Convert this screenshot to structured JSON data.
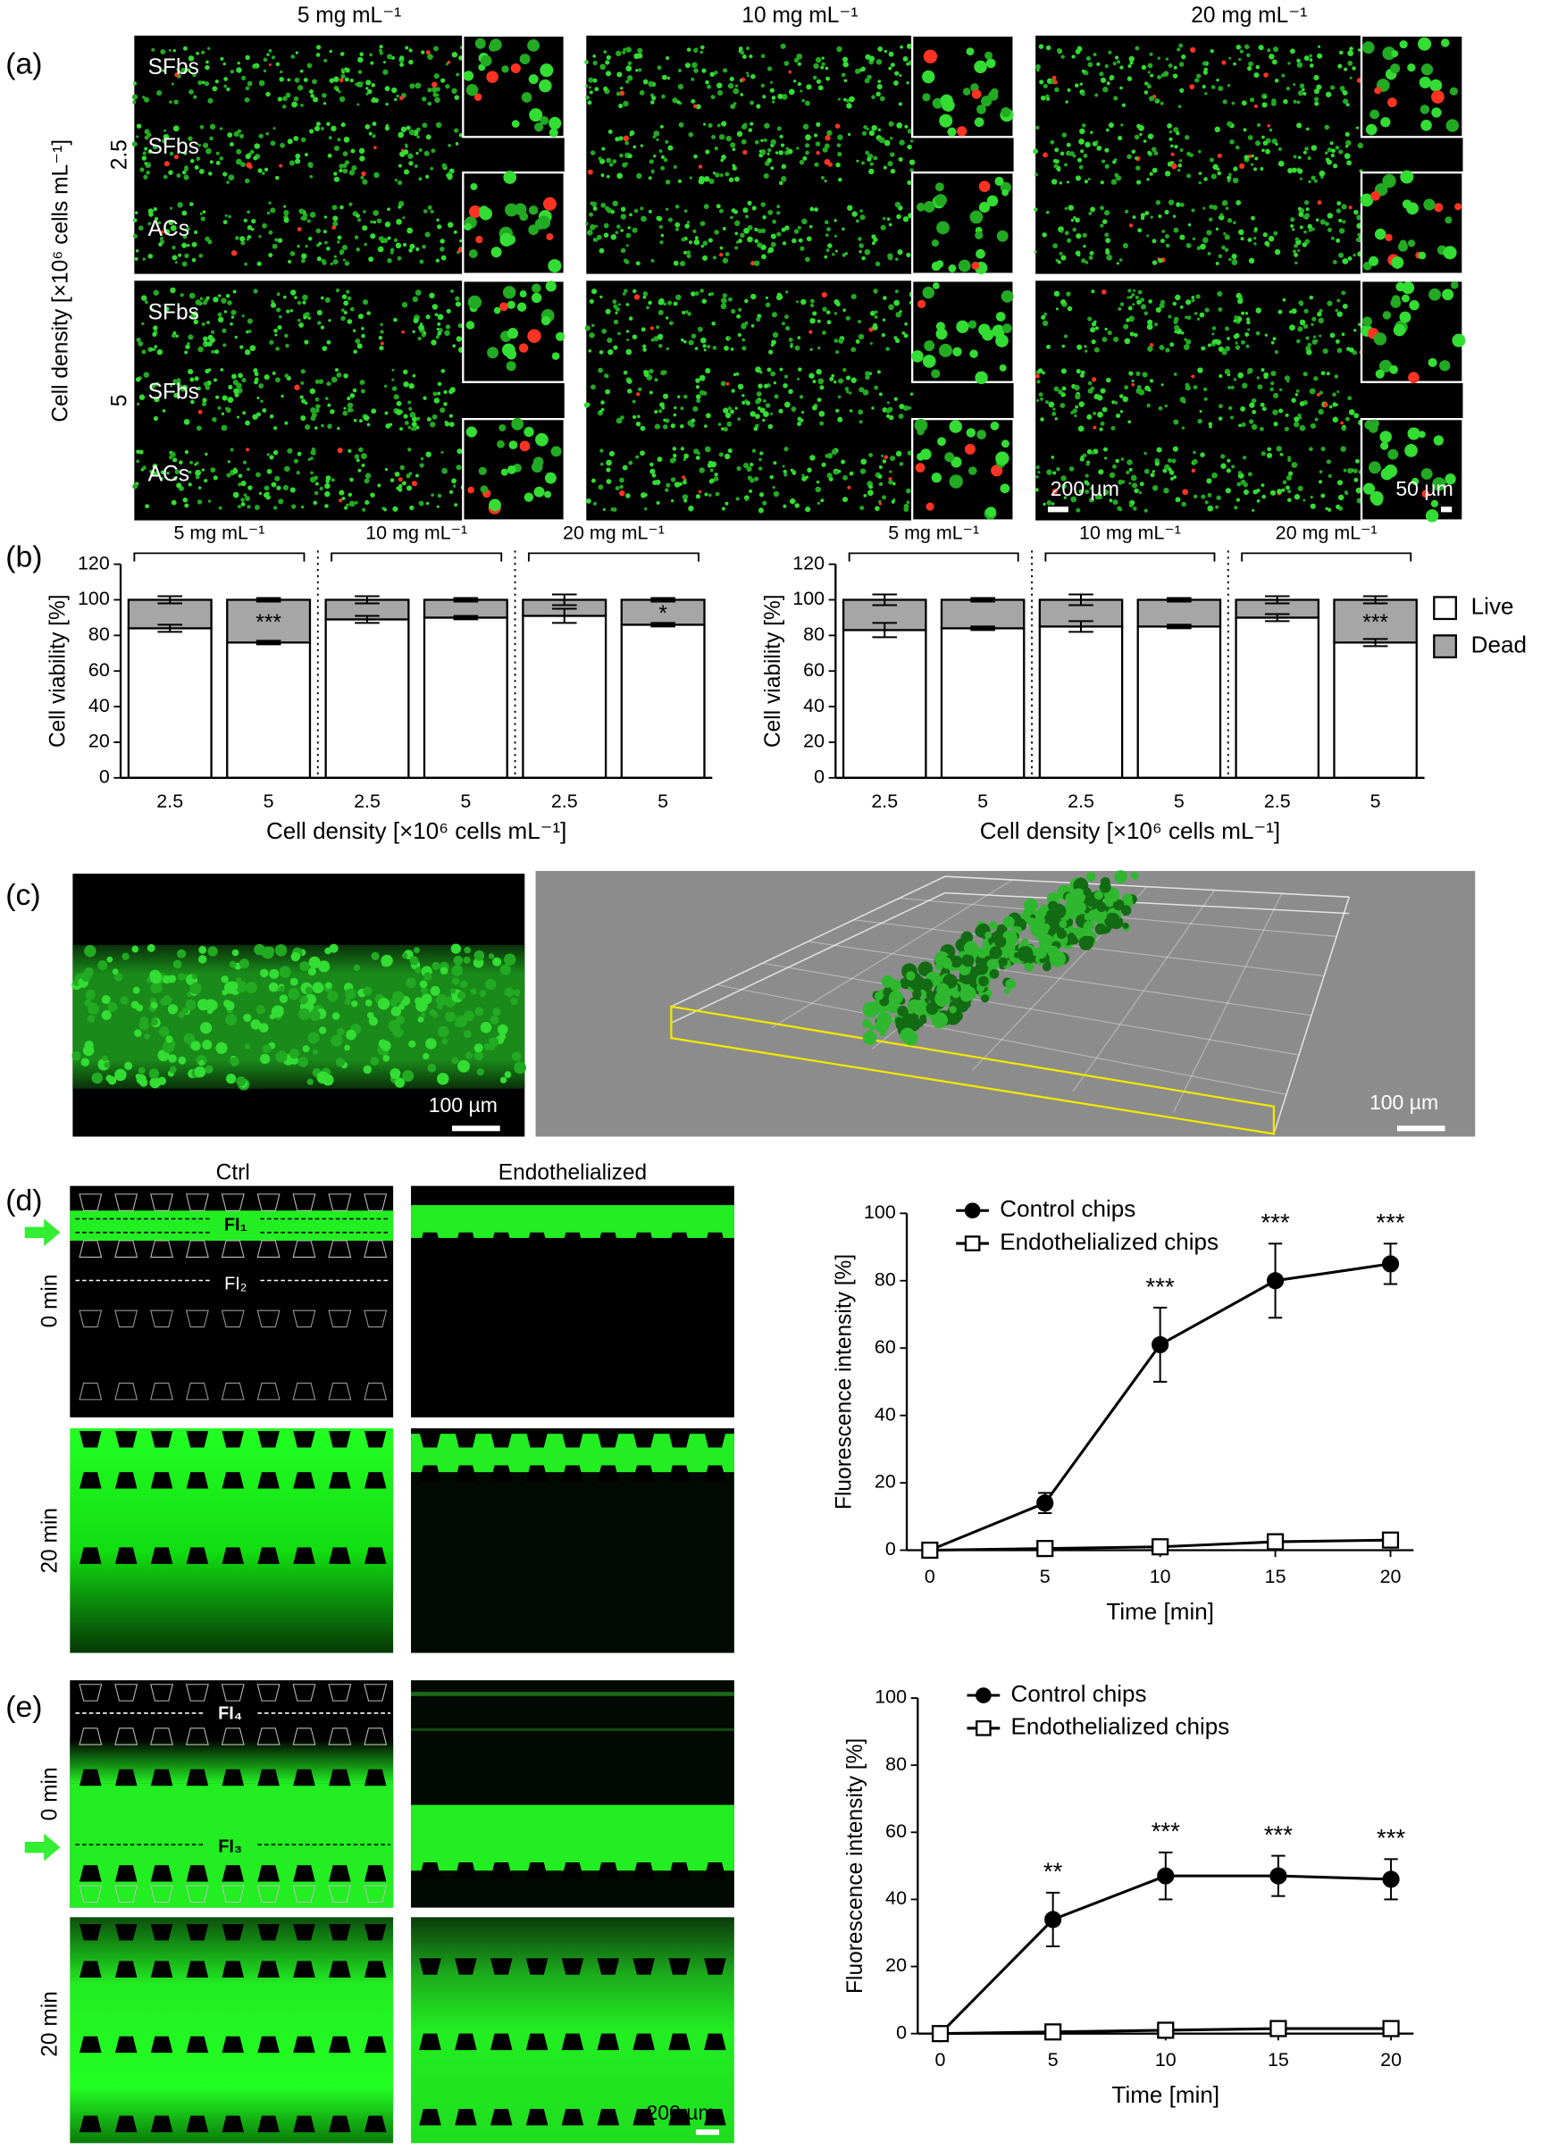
{
  "panel_labels": [
    "(a)",
    "(b)",
    "(c)",
    "(d)",
    "(e)"
  ],
  "panel_a": {
    "columns": [
      "5 mg mL⁻¹",
      "10 mg mL⁻¹",
      "20 mg mL⁻¹"
    ],
    "rows": [
      "2.5",
      "5"
    ],
    "row_axis_label": "Cell density [×10⁶ cells mL⁻¹]",
    "channels": [
      "SFbs",
      "SFbs",
      "ACs"
    ],
    "scale_bars": [
      "200 µm",
      "50 µm"
    ]
  },
  "panel_c": {
    "scale_bars": [
      "100 µm",
      "100 µm"
    ]
  },
  "panel_d": {
    "columns": [
      "Ctrl",
      "Endothelialized"
    ],
    "rows": [
      "0 min",
      "20 min"
    ],
    "lines": [
      "FI₁",
      "FI₂"
    ]
  },
  "panel_e": {
    "rows": [
      "0 min",
      "20 min"
    ],
    "lines": [
      "FI₄",
      "FI₃"
    ],
    "scale_bar": "200 µm"
  },
  "chart_data": [
    {
      "type": "stacked_bar",
      "groups": [
        "5 mg mL⁻¹",
        "10 mg mL⁻¹",
        "20 mg mL⁻¹"
      ],
      "categories": [
        "2.5",
        "5",
        "2.5",
        "5",
        "2.5",
        "5"
      ],
      "x_label": "Cell density [×10⁶ cells mL⁻¹]",
      "y_label": "Cell viability [%]",
      "ylim": [
        0,
        120
      ],
      "yticks": [
        0,
        20,
        40,
        60,
        80,
        100,
        120
      ],
      "series": [
        {
          "name": "Live",
          "color": "#ffffff",
          "values": [
            84,
            76,
            89,
            90,
            91,
            86
          ],
          "errors": [
            2,
            1,
            2,
            1,
            4,
            1
          ]
        },
        {
          "name": "Dead",
          "color": "#a6a6a6",
          "values": [
            16,
            24,
            11,
            10,
            9,
            14
          ],
          "errors": [
            2,
            1,
            2,
            1,
            3,
            1
          ]
        }
      ],
      "significance": [
        null,
        "***",
        null,
        null,
        null,
        "*"
      ]
    },
    {
      "type": "stacked_bar",
      "groups": [
        "5 mg mL⁻¹",
        "10 mg mL⁻¹",
        "20 mg mL⁻¹"
      ],
      "categories": [
        "2.5",
        "5",
        "2.5",
        "5",
        "2.5",
        "5"
      ],
      "x_label": "Cell density [×10⁶ cells mL⁻¹]",
      "y_label": "Cell viability [%]",
      "ylim": [
        0,
        120
      ],
      "yticks": [
        0,
        20,
        40,
        60,
        80,
        100,
        120
      ],
      "series": [
        {
          "name": "Live",
          "color": "#ffffff",
          "values": [
            83,
            84,
            85,
            85,
            90,
            76
          ],
          "errors": [
            4,
            1,
            3,
            1,
            2,
            2
          ]
        },
        {
          "name": "Dead",
          "color": "#a6a6a6",
          "values": [
            17,
            16,
            15,
            15,
            10,
            24
          ],
          "errors": [
            3,
            1,
            3,
            1,
            2,
            2
          ]
        }
      ],
      "significance": [
        null,
        null,
        null,
        null,
        null,
        "***"
      ],
      "legend": "right"
    },
    {
      "type": "line",
      "x": [
        0,
        5,
        10,
        15,
        20
      ],
      "x_label": "Time [min]",
      "y_label": "Fluorescence intensity [%]",
      "xlim": [
        -1,
        21
      ],
      "xticks": [
        0,
        5,
        10,
        15,
        20
      ],
      "ylim": [
        0,
        100
      ],
      "yticks": [
        0,
        20,
        40,
        60,
        80,
        100
      ],
      "series": [
        {
          "name": "Control chips",
          "color": "#000000",
          "fill": "#000000",
          "marker": "circle",
          "values": [
            0,
            14,
            61,
            80,
            85
          ],
          "errors": [
            0,
            3,
            11,
            11,
            6
          ]
        },
        {
          "name": "Endothelialized chips",
          "color": "#000000",
          "fill": "#ffffff",
          "marker": "square",
          "values": [
            0,
            0.5,
            1,
            2.5,
            3
          ],
          "errors": [
            0,
            0.5,
            0.5,
            1,
            1
          ]
        }
      ],
      "significance": [
        null,
        null,
        "***",
        "***",
        "***"
      ],
      "legend": "upper left"
    },
    {
      "type": "line",
      "x": [
        0,
        5,
        10,
        15,
        20
      ],
      "x_label": "Time [min]",
      "y_label": "Fluorescence intensity [%]",
      "xlim": [
        -1,
        21
      ],
      "xticks": [
        0,
        5,
        10,
        15,
        20
      ],
      "ylim": [
        0,
        100
      ],
      "yticks": [
        0,
        20,
        40,
        60,
        80,
        100
      ],
      "series": [
        {
          "name": "Control chips",
          "color": "#000000",
          "fill": "#000000",
          "marker": "circle",
          "values": [
            0,
            34,
            47,
            47,
            46
          ],
          "errors": [
            0,
            8,
            7,
            6,
            6
          ]
        },
        {
          "name": "Endothelialized chips",
          "color": "#000000",
          "fill": "#ffffff",
          "marker": "square",
          "values": [
            0,
            0.5,
            1,
            1.5,
            1.5
          ],
          "errors": [
            0,
            0.5,
            0.5,
            0.5,
            0.5
          ]
        }
      ],
      "significance": [
        null,
        "**",
        "***",
        "***",
        "***"
      ],
      "legend": "upper left"
    }
  ]
}
